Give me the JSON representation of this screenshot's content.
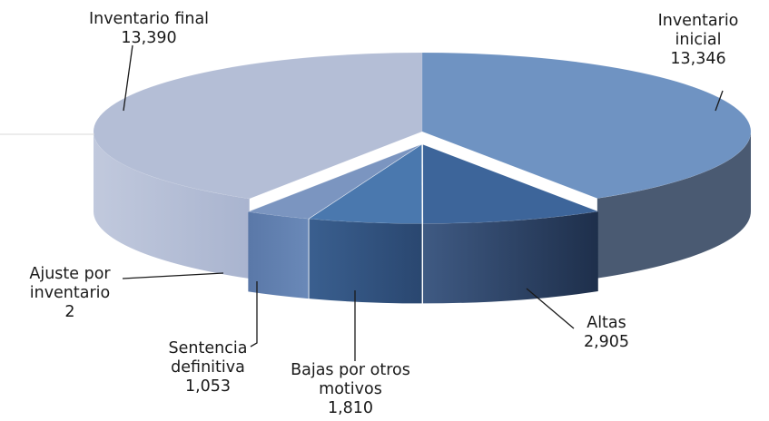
{
  "chart_data": {
    "type": "pie",
    "style": "3d-exploded",
    "title": "",
    "slices": [
      {
        "label": [
          "Inventario",
          "inicial"
        ],
        "value": 13346,
        "value_text": "13,346",
        "color": "#6f93c2"
      },
      {
        "label": [
          "Altas"
        ],
        "value": 2905,
        "value_text": "2,905",
        "color": "#3d659a"
      },
      {
        "label": [
          "Bajas por otros",
          "motivos"
        ],
        "value": 1810,
        "value_text": "1,810",
        "color": "#4a78ae"
      },
      {
        "label": [
          "Sentencia",
          "definitiva"
        ],
        "value": 1053,
        "value_text": "1,053",
        "color": "#7b95c0"
      },
      {
        "label": [
          "Ajuste por",
          "inventario"
        ],
        "value": 2,
        "value_text": "2",
        "color": "#8aa3c9"
      },
      {
        "label": [
          "Inventario final"
        ],
        "value": 13390,
        "value_text": "13,390",
        "color": "#b4bed6"
      }
    ],
    "legend": "none",
    "data_labels": "outside-with-leader-lines"
  }
}
